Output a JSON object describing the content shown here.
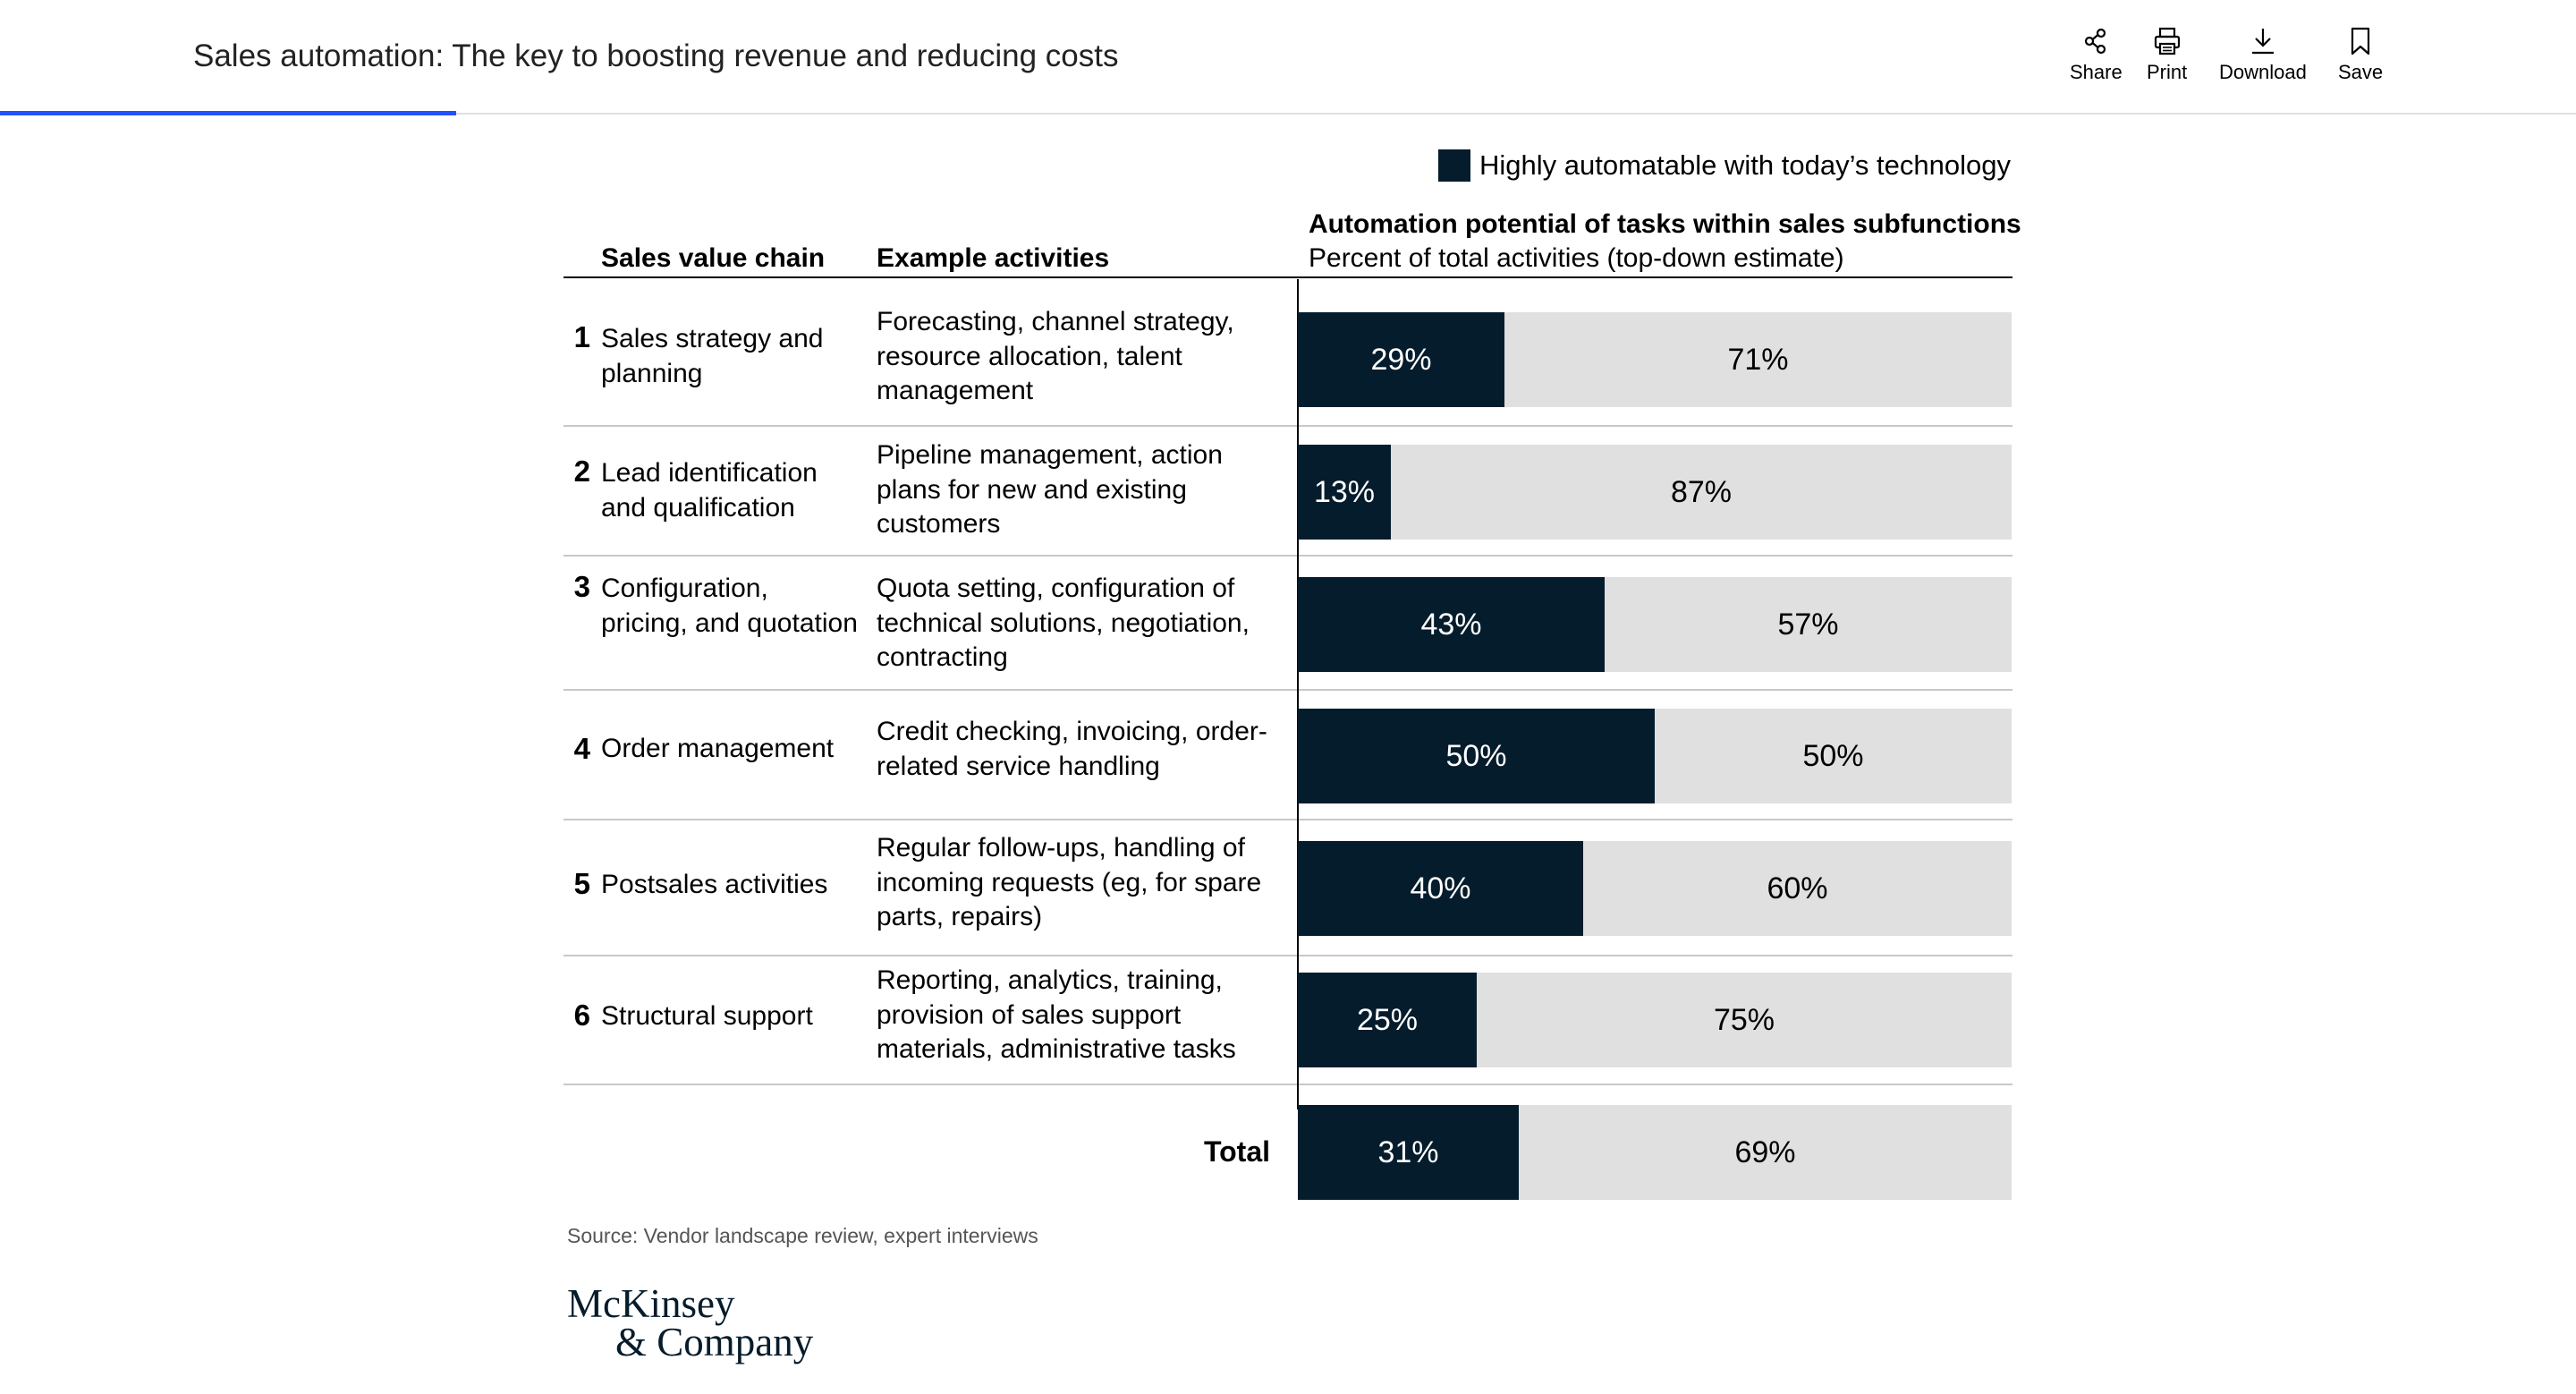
{
  "header": {
    "title": "Sales automation: The key to boosting revenue and reducing costs",
    "actions": [
      {
        "label": "Share",
        "icon": "share-icon"
      },
      {
        "label": "Print",
        "icon": "print-icon"
      },
      {
        "label": "Download",
        "icon": "download-icon"
      },
      {
        "label": "Save",
        "icon": "bookmark-icon"
      }
    ]
  },
  "legend": {
    "label": "Highly automatable with today’s technology",
    "color": "#051c2c"
  },
  "columns": {
    "chain": "Sales value chain",
    "activities": "Example activities",
    "chart_title": "Automation potential of tasks within sales subfunctions",
    "chart_subtitle": "Percent of total activities (top-down estimate)"
  },
  "rows": [
    {
      "num": "1",
      "name": "Sales strategy and planning",
      "activities": "Forecasting, channel strategy, resource allocation, talent management"
    },
    {
      "num": "2",
      "name": "Lead identification and qualification",
      "activities": "Pipeline management, action plans for new and existing customers"
    },
    {
      "num": "3",
      "name": "Configuration, pricing, and quotation",
      "activities": "Quota setting, configuration of technical solutions, negotiation, contracting"
    },
    {
      "num": "4",
      "name": "Order management",
      "activities": "Credit checking, invoicing, order-related service handling"
    },
    {
      "num": "5",
      "name": "Postsales activities",
      "activities": "Regular follow-ups, handling of incoming requests (eg, for spare parts, repairs)"
    },
    {
      "num": "6",
      "name": "Structural support",
      "activities": "Reporting, analytics, training, provision of sales support materials, administrative tasks"
    }
  ],
  "total_label": "Total",
  "chart_data": {
    "type": "bar",
    "stacked": true,
    "orientation": "horizontal",
    "categories": [
      "Sales strategy and planning",
      "Lead identification and qualification",
      "Configuration, pricing, and quotation",
      "Order management",
      "Postsales activities",
      "Structural support",
      "Total"
    ],
    "series": [
      {
        "name": "Highly automatable with today’s technology",
        "values": [
          29,
          13,
          43,
          50,
          40,
          25,
          31
        ],
        "labels": [
          "29%",
          "13%",
          "43%",
          "50%",
          "40%",
          "25%",
          "31%"
        ],
        "color": "#051c2c"
      },
      {
        "values": [
          71,
          87,
          57,
          50,
          60,
          75,
          69
        ],
        "labels": [
          "71%",
          "87%",
          "57%",
          "50%",
          "60%",
          "75%",
          "69%"
        ],
        "color": "#e0e0e0"
      }
    ],
    "title": "Automation potential of tasks within sales subfunctions",
    "subtitle": "Percent of total activities (top-down estimate)",
    "xlim": [
      0,
      100
    ],
    "grid": false,
    "legend_position": "top-right"
  },
  "source": "Source: Vendor landscape review, expert interviews",
  "logo": {
    "line1": "McKinsey",
    "line2": "& Company"
  }
}
